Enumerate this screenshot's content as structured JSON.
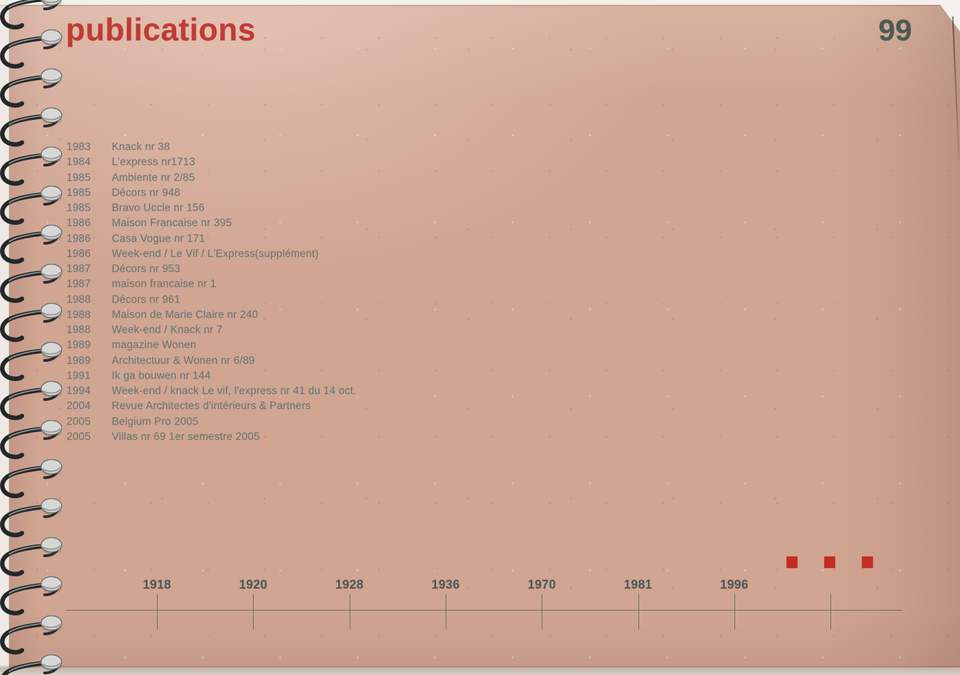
{
  "header": {
    "title": "publications",
    "page_number": "99"
  },
  "publications": [
    {
      "year": "1983",
      "title": "Knack nr 38"
    },
    {
      "year": "1984",
      "title": "L'express nr1713"
    },
    {
      "year": "1985",
      "title": "Ambiente nr 2/85"
    },
    {
      "year": "1985",
      "title": "Décors nr 948"
    },
    {
      "year": "1985",
      "title": "Bravo Uccle nr 156"
    },
    {
      "year": "1986",
      "title": "Maison Francaise nr 395"
    },
    {
      "year": "1986",
      "title": "Casa Vogue nr 171"
    },
    {
      "year": "1986",
      "title": "Week-end / Le Vif / L'Express(supplément)"
    },
    {
      "year": "1987",
      "title": "Décors nr 953"
    },
    {
      "year": "1987",
      "title": "maison francaise nr 1"
    },
    {
      "year": "1988",
      "title": "Décors nr 961"
    },
    {
      "year": "1988",
      "title": "Maison de Marie Claire nr 240"
    },
    {
      "year": "1988",
      "title": "Week-end / Knack nr 7"
    },
    {
      "year": "1989",
      "title": "magazine Wonen"
    },
    {
      "year": "1989",
      "title": "Architectuur & Wonen nr 6/89"
    },
    {
      "year": "1991",
      "title": "Ik ga bouwen nr 144"
    },
    {
      "year": "1994",
      "title": "Week-end / knack Le vif, l'express nr 41 du 14 oct."
    },
    {
      "year": "2004",
      "title": "Revue Architectes d'intérieurs & Partners"
    },
    {
      "year": "2005",
      "title": "Belgium Pro 2005"
    },
    {
      "year": "2005",
      "title": "Villas nr 69 1er semestre 2005"
    }
  ],
  "timeline": {
    "ticks": [
      "1918",
      "1920",
      "1928",
      "1936",
      "1970",
      "1981",
      "1996",
      ""
    ]
  },
  "markers": {
    "count": 3
  },
  "colors": {
    "paper": "#d0a592",
    "title-red": "#bf3c33",
    "marker-red": "#c42d24",
    "page-number": "#4c5a53",
    "list-text": "#6d7774",
    "timeline-text": "#505955",
    "timeline-line": "#63635e"
  }
}
